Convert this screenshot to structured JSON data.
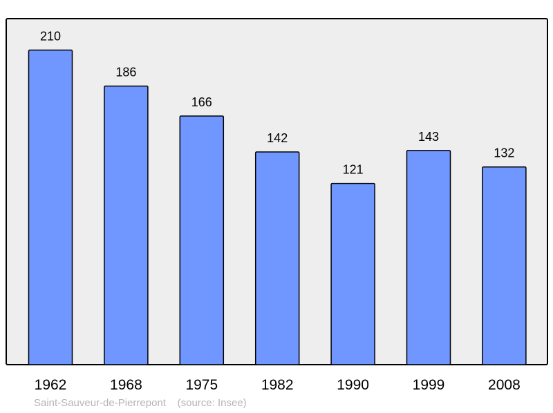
{
  "chart_data": {
    "type": "bar",
    "categories": [
      "1962",
      "1968",
      "1975",
      "1982",
      "1990",
      "1999",
      "2008"
    ],
    "values": [
      210,
      186,
      166,
      142,
      121,
      143,
      132
    ],
    "title": "",
    "xlabel": "",
    "ylabel": "",
    "ylim": [
      0,
      231
    ],
    "grid": false,
    "data_labels": true,
    "colors": {
      "bar": "#7096ff",
      "background": "#eeeeee",
      "border": "#000000"
    }
  },
  "footer": {
    "place": "Saint-Sauveur-de-Pierrepont",
    "source": "(source: Insee)"
  }
}
